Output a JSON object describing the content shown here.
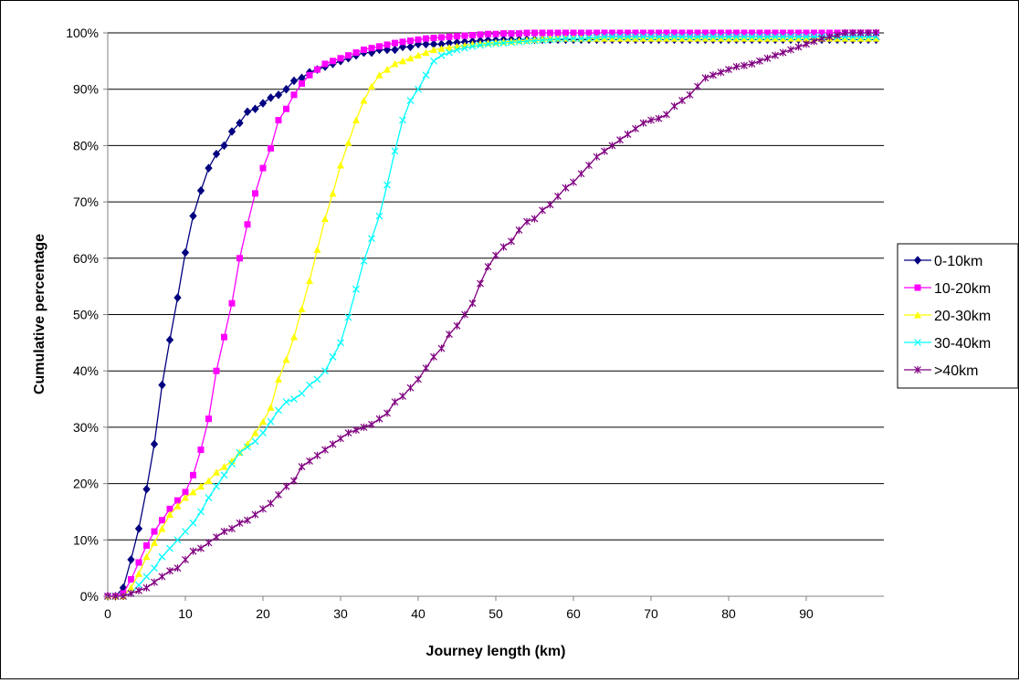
{
  "chart_data": {
    "type": "line",
    "title": "",
    "xlabel": "Journey length (km)",
    "ylabel": "Cumulative percentage",
    "xlim": [
      0,
      100
    ],
    "ylim": [
      0,
      100
    ],
    "x_ticks": [
      0,
      10,
      20,
      30,
      40,
      50,
      60,
      70,
      80,
      90
    ],
    "y_ticks": [
      0,
      10,
      20,
      30,
      40,
      50,
      60,
      70,
      80,
      90,
      100
    ],
    "y_tick_labels": [
      "0%",
      "10%",
      "20%",
      "30%",
      "40%",
      "50%",
      "60%",
      "70%",
      "80%",
      "90%",
      "100%"
    ],
    "x_tick_labels": [
      "0",
      "10",
      "20",
      "30",
      "40",
      "50",
      "60",
      "70",
      "80",
      "90"
    ],
    "grid": "horizontal",
    "legend_position": "right",
    "x": [
      0,
      1,
      2,
      3,
      4,
      5,
      6,
      7,
      8,
      9,
      10,
      11,
      12,
      13,
      14,
      15,
      16,
      17,
      18,
      19,
      20,
      21,
      22,
      23,
      24,
      25,
      26,
      27,
      28,
      29,
      30,
      31,
      32,
      33,
      34,
      35,
      36,
      37,
      38,
      39,
      40,
      41,
      42,
      43,
      44,
      45,
      46,
      47,
      48,
      49,
      50,
      51,
      52,
      53,
      54,
      55,
      56,
      57,
      58,
      59,
      60,
      61,
      62,
      63,
      64,
      65,
      66,
      67,
      68,
      69,
      70,
      71,
      72,
      73,
      74,
      75,
      76,
      77,
      78,
      79,
      80,
      81,
      82,
      83,
      84,
      85,
      86,
      87,
      88,
      89,
      90,
      91,
      92,
      93,
      94,
      95,
      96,
      97,
      98,
      99
    ],
    "series": [
      {
        "name": "0-10km",
        "color": "#000080",
        "marker": "diamond",
        "values": [
          0,
          0,
          1.5,
          6.5,
          12,
          19,
          27,
          37.5,
          45.5,
          53,
          61,
          67.5,
          72,
          76,
          78.5,
          80,
          82.5,
          84,
          86,
          86.5,
          87.5,
          88.5,
          89,
          90,
          91.5,
          92,
          93,
          93.5,
          94,
          94.5,
          95,
          95.5,
          96,
          96.5,
          96.5,
          97,
          97,
          97,
          97.5,
          97.5,
          98,
          98,
          98,
          98,
          98.2,
          98.3,
          98.4,
          98.5,
          98.6,
          98.7,
          98.7,
          98.8,
          98.8,
          98.8,
          98.8,
          98.8,
          98.8,
          98.8,
          98.8,
          98.8,
          98.8,
          98.8,
          98.8,
          98.8,
          98.8,
          98.8,
          98.8,
          98.8,
          98.8,
          98.8,
          98.8,
          98.8,
          98.8,
          98.8,
          98.8,
          98.8,
          98.8,
          98.8,
          98.8,
          98.8,
          98.8,
          98.8,
          98.8,
          98.8,
          98.8,
          98.8,
          98.8,
          98.8,
          98.8,
          98.8,
          98.8,
          98.8,
          98.8,
          98.8,
          98.8,
          98.8,
          98.8,
          98.8,
          98.8,
          98.8
        ]
      },
      {
        "name": "10-20km",
        "color": "#FF00FF",
        "marker": "square",
        "values": [
          0,
          0,
          0.5,
          3,
          6,
          9,
          11.5,
          13.5,
          15.5,
          17,
          18.5,
          21.5,
          26,
          31.5,
          40,
          46,
          52,
          60,
          66,
          71.5,
          76,
          79.5,
          84.5,
          86.5,
          89,
          91,
          92.5,
          93.5,
          94.5,
          95,
          95.5,
          96,
          96.5,
          97,
          97.3,
          97.6,
          97.9,
          98.2,
          98.4,
          98.6,
          98.8,
          99,
          99.1,
          99.2,
          99.3,
          99.4,
          99.5,
          99.6,
          99.7,
          99.8,
          99.8,
          99.9,
          99.9,
          99.9,
          100,
          100,
          100,
          100,
          100,
          100,
          100,
          100,
          100,
          100,
          100,
          100,
          100,
          100,
          100,
          100,
          100,
          100,
          100,
          100,
          100,
          100,
          100,
          100,
          100,
          100,
          100,
          100,
          100,
          100,
          100,
          100,
          100,
          100,
          100,
          100,
          100,
          100,
          100,
          100,
          100,
          100,
          100,
          100,
          100,
          100
        ]
      },
      {
        "name": "20-30km",
        "color": "#FFFF00",
        "marker": "triangle",
        "values": [
          0,
          0,
          0,
          1.5,
          4,
          7,
          9.5,
          12,
          14.5,
          16,
          17.5,
          18.5,
          19.5,
          20.5,
          22,
          23,
          24,
          25.5,
          27,
          29,
          31,
          33.5,
          38.5,
          42,
          46,
          51,
          56,
          61.5,
          67,
          71.5,
          76.5,
          80.5,
          84.5,
          88,
          90.5,
          92.5,
          93.5,
          94.5,
          95,
          95.5,
          96,
          96.5,
          97,
          97.2,
          97.4,
          97.6,
          97.8,
          98,
          98.1,
          98.2,
          98.3,
          98.4,
          98.5,
          98.6,
          98.7,
          98.8,
          98.9,
          99,
          99,
          99,
          99,
          99,
          99,
          99,
          99,
          99,
          99,
          99,
          99,
          99,
          99,
          99,
          99,
          99,
          99,
          99,
          99,
          99,
          99,
          99,
          99,
          99,
          99,
          99,
          99,
          99,
          99,
          99,
          99,
          99,
          99,
          99,
          99,
          99,
          99,
          99,
          99,
          99,
          99,
          99
        ]
      },
      {
        "name": "30-40km",
        "color": "#00FFFF",
        "marker": "x",
        "values": [
          0,
          0,
          0,
          0.5,
          2,
          3.5,
          5,
          7,
          8.5,
          10,
          11.5,
          13,
          15,
          17.5,
          19.5,
          21.5,
          23.5,
          25.5,
          26.5,
          27.5,
          29,
          31,
          33,
          34.5,
          35,
          36,
          37.5,
          38.5,
          40,
          42.5,
          45,
          49.5,
          54.5,
          59.5,
          63.5,
          67.5,
          73,
          79,
          84.5,
          88,
          90,
          92.5,
          95,
          96,
          96.5,
          97,
          97.3,
          97.6,
          97.8,
          98,
          98.1,
          98.2,
          98.3,
          98.4,
          98.5,
          98.6,
          98.7,
          98.8,
          98.9,
          99,
          99,
          99,
          99.1,
          99.2,
          99.3,
          99.3,
          99.3,
          99.3,
          99.3,
          99.3,
          99.3,
          99.3,
          99.3,
          99.3,
          99.3,
          99.3,
          99.3,
          99.3,
          99.3,
          99.3,
          99.3,
          99.3,
          99.3,
          99.3,
          99.3,
          99.3,
          99.3,
          99.3,
          99.3,
          99.3,
          99.3,
          99.3,
          99.3,
          99.3,
          99.3,
          99.3,
          99.3,
          99.3,
          99.3,
          99.3
        ]
      },
      {
        "name": ">40km",
        "color": "#800080",
        "marker": "star",
        "values": [
          0,
          0,
          0,
          0.5,
          1,
          1.5,
          2.5,
          3.5,
          4.5,
          5,
          6.5,
          8,
          8.5,
          9.5,
          10.5,
          11.5,
          12,
          13,
          13.5,
          14.5,
          15.5,
          16.5,
          18,
          19.5,
          20.5,
          23,
          24,
          25,
          26,
          27,
          28,
          29,
          29.5,
          30,
          30.5,
          31.5,
          32.5,
          34.5,
          35.5,
          37,
          38.5,
          40.5,
          42.5,
          44,
          46.5,
          48,
          50,
          52,
          55.5,
          58.5,
          60.5,
          62,
          63,
          65,
          66.5,
          67,
          68.5,
          69.5,
          71,
          72.5,
          73.5,
          75,
          76.5,
          78,
          79,
          80,
          81,
          82,
          83,
          84,
          84.5,
          84.8,
          85.5,
          87,
          88,
          89,
          90.5,
          92,
          92.5,
          93,
          93.5,
          94,
          94.2,
          94.5,
          95,
          95.5,
          96,
          96.5,
          97,
          97.5,
          98,
          98.5,
          99,
          99.3,
          99.6,
          100,
          100,
          100,
          100,
          100
        ]
      }
    ]
  }
}
